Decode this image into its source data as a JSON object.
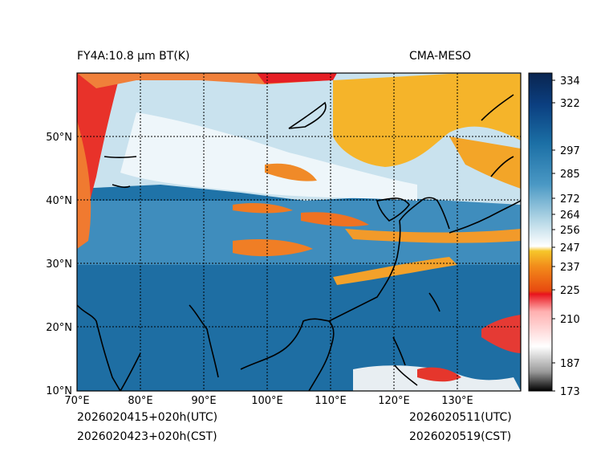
{
  "header": {
    "left_title": "FY4A:10.8 µm BT(K)",
    "right_title": "CMA-MESO"
  },
  "map": {
    "lon_labels": [
      "70°E",
      "80°E",
      "90°E",
      "100°E",
      "110°E",
      "120°E",
      "130°E"
    ],
    "lat_labels": [
      "50°N",
      "40°N",
      "30°N",
      "20°N",
      "10°N"
    ],
    "lon_range": [
      70,
      140
    ],
    "lat_range": [
      10,
      60
    ]
  },
  "colorbar": {
    "ticks": [
      "334",
      "322",
      "297",
      "285",
      "272",
      "264",
      "256",
      "247",
      "237",
      "225",
      "210",
      "187",
      "173"
    ],
    "range": [
      173,
      336
    ],
    "colors": {
      "cold": "#000000",
      "gray": "#9a9a9a",
      "white": "#ffffff",
      "red": "#e8141c",
      "orange": "#f28a1a",
      "yellow": "#f6c62a",
      "light_blue": "#d8ecf4",
      "mid_blue": "#6aaed0",
      "blue": "#1b6fa5",
      "navy": "#0a2a60"
    }
  },
  "footer": {
    "left_line1": "2026020415+020h(UTC)",
    "left_line2": "2026020423+020h(CST)",
    "right_line1": "2026020511(UTC)",
    "right_line2": "2026020519(CST)"
  }
}
